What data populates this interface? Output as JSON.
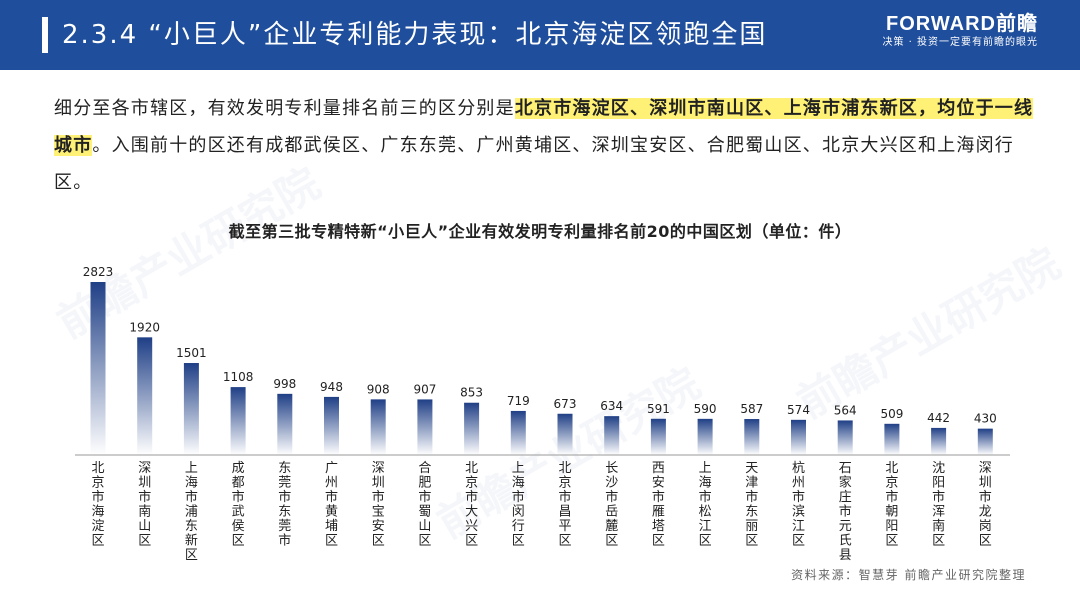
{
  "header": {
    "title": "2.3.4  “小巨人”企业专利能力表现：北京海淀区领跑全国",
    "brand_name": "FORWARD前瞻",
    "brand_slogan": "决策 · 投资一定要有前瞻的眼光",
    "bar_color": "#1f4e9c"
  },
  "intro": {
    "part1": "细分至各市辖区，有效发明专利量排名前三的区分别是",
    "highlight": "北京市海淀区、深圳市南山区、上海市浦东新区，均位于一线城市",
    "part2": "。入围前十的区还有成都武侯区、广东东莞、广州黄埔区、深圳宝安区、合肥蜀山区、北京大兴区和上海闵行区。"
  },
  "watermark": "前瞻产业研究院",
  "source": "资料来源：智慧芽  前瞻产业研究院整理",
  "chart_data": {
    "type": "bar",
    "title": "截至第三批专精特新“小巨人”企业有效发明专利量排名前20的中国区划（单位：件）",
    "categories": [
      "北京市海淀区",
      "深圳市南山区",
      "上海市浦东新区",
      "成都市武侯区",
      "东莞市东莞市",
      "广州市黄埔区",
      "深圳市宝安区",
      "合肥市蜀山区",
      "北京市大兴区",
      "上海市闵行区",
      "北京市昌平区",
      "长沙市岳麓区",
      "西安市雁塔区",
      "上海市松江区",
      "天津市东丽区",
      "杭州市滨江区",
      "石家庄市元氏县",
      "北京市朝阳区",
      "沈阳市浑南区",
      "深圳市龙岗区"
    ],
    "values": [
      2823,
      1920,
      1501,
      1108,
      998,
      948,
      908,
      907,
      853,
      719,
      673,
      634,
      591,
      590,
      587,
      574,
      564,
      509,
      442,
      430
    ],
    "bar_color_top": "#1f3f86",
    "bar_color_bottom": "#ffffff",
    "grid": false,
    "legend": "none"
  }
}
